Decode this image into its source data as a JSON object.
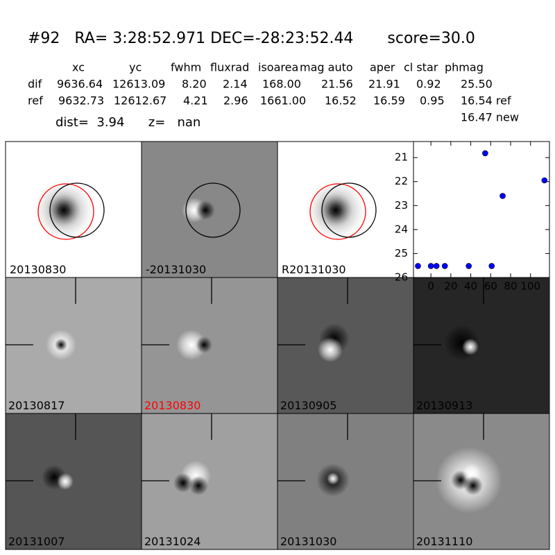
{
  "header": {
    "title": "#92   RA= 3:28:52.971 DEC=-28:23:52.44       score=30.0",
    "dist_line": "dist=  3.94      z=   nan"
  },
  "table": {
    "columns": [
      "xc",
      "yc",
      "fwhm",
      "fluxrad",
      "isoarea",
      "mag auto",
      "aper",
      "cl star",
      "phmag"
    ],
    "rows": [
      {
        "label": "dif",
        "cells": [
          "9636.64",
          "12613.09",
          "8.20",
          "2.14",
          "168.00",
          "21.56",
          "21.91",
          "0.92",
          "25.50"
        ]
      },
      {
        "label": "ref",
        "cells": [
          "9632.73",
          "12612.67",
          "4.21",
          "2.96",
          "1661.00",
          "16.52",
          "16.59",
          "0.95",
          "16.54 ref"
        ]
      }
    ],
    "extra": "16.47 new"
  },
  "panels": [
    "20130830",
    "-20131030",
    "R20131030",
    "20130817",
    "20130830",
    "20130905",
    "20130913",
    "20131007",
    "20131024",
    "20131030",
    "20131110"
  ],
  "chart_data": {
    "type": "scatter",
    "color": "#0000ff",
    "x": [
      -13,
      0,
      5.6,
      14,
      38,
      54.5,
      61,
      72,
      114
    ],
    "values": [
      25.52,
      25.52,
      25.52,
      25.52,
      25.52,
      20.82,
      25.52,
      22.6,
      21.95
    ],
    "errors": [
      0.05,
      0.05,
      0.05,
      0.05,
      0.05,
      0.05,
      0.05,
      0.1,
      0.1
    ],
    "xlim": [
      -17.5,
      119
    ],
    "ylim": [
      26,
      20.33
    ],
    "xticks": [
      0,
      20,
      40,
      60,
      80,
      100
    ],
    "yticks": [
      21,
      22,
      23,
      24,
      25,
      26
    ]
  }
}
